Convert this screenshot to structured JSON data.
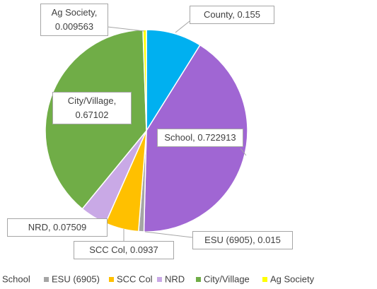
{
  "chart_data": {
    "type": "pie",
    "categories": [
      "County",
      "School",
      "ESU (6905)",
      "SCC Col",
      "NRD",
      "City/Village",
      "Ag Society"
    ],
    "values": [
      0.155,
      0.722913,
      0.015,
      0.0937,
      0.07509,
      0.67102,
      0.009563
    ],
    "value_labels": [
      "County, 0.155",
      "School, 0.722913",
      "ESU (6905), 0.015",
      "SCC Col, 0.0937",
      "NRD, 0.07509",
      "City/Village, 0.67102",
      "Ag Society, 0.009563"
    ],
    "colors": [
      "#00b0f0",
      "#a066d3",
      "#a5a5a5",
      "#ffc000",
      "#c9a9e6",
      "#70ad47",
      "#ffff00"
    ],
    "legend": "bottom"
  }
}
